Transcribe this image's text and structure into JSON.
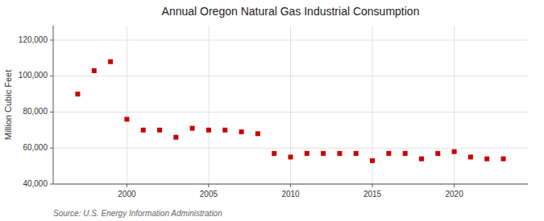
{
  "chart_data": {
    "type": "scatter",
    "title": "Annual Oregon Natural Gas Industrial Consumption",
    "y_label": "Million Cubic Feet",
    "source": "Source: U.S. Energy Information Administration",
    "x": [
      1997,
      1998,
      1999,
      2000,
      2001,
      2002,
      2003,
      2004,
      2005,
      2006,
      2007,
      2008,
      2009,
      2010,
      2011,
      2012,
      2013,
      2014,
      2015,
      2016,
      2017,
      2018,
      2019,
      2020,
      2021,
      2022,
      2023
    ],
    "values": [
      90000,
      103000,
      108000,
      76000,
      70000,
      70000,
      66000,
      71000,
      70000,
      70000,
      69000,
      68000,
      57000,
      55000,
      57000,
      57000,
      57000,
      57000,
      53000,
      57000,
      57000,
      54000,
      57000,
      58000,
      55000,
      54000,
      54000
    ],
    "color": "#cc0000",
    "marker": "square",
    "xlim": [
      1995.5,
      2024.5
    ],
    "xticks": [
      2000,
      2005,
      2010,
      2015,
      2020
    ],
    "ylim": [
      40000,
      128000
    ],
    "yticks": [
      {
        "value": 40000,
        "label": "40,000"
      },
      {
        "value": 60000,
        "label": "60,000"
      },
      {
        "value": 80000,
        "label": "80,000"
      },
      {
        "value": 100000,
        "label": "100,000"
      },
      {
        "value": 120000,
        "label": "120,000"
      }
    ],
    "grid": true
  }
}
